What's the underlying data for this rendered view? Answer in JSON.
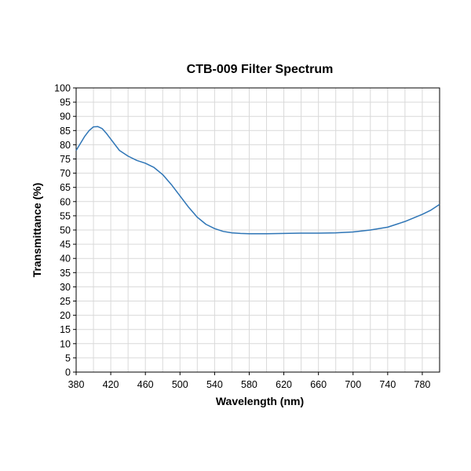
{
  "chart_data": {
    "type": "line",
    "title": "CTB-009 Filter Spectrum",
    "xlabel": "Wavelength (nm)",
    "ylabel": "Transmittance (%)",
    "xlim": [
      380,
      800
    ],
    "ylim": [
      0,
      100
    ],
    "x_ticks": [
      380,
      420,
      460,
      500,
      540,
      580,
      620,
      660,
      700,
      740,
      780
    ],
    "y_ticks": [
      0,
      5,
      10,
      15,
      20,
      25,
      30,
      35,
      40,
      45,
      50,
      55,
      60,
      65,
      70,
      75,
      80,
      85,
      90,
      95,
      100
    ],
    "grid": true,
    "legend": "none",
    "line_color": "#2e75b6",
    "series": [
      {
        "x": [
          380,
          385,
          390,
          395,
          400,
          405,
          410,
          415,
          420,
          430,
          440,
          450,
          460,
          470,
          480,
          490,
          500,
          510,
          520,
          530,
          540,
          550,
          560,
          570,
          580,
          590,
          600,
          620,
          640,
          660,
          680,
          700,
          720,
          740,
          760,
          780,
          790,
          800
        ],
        "y": [
          78,
          80.5,
          83,
          85,
          86.3,
          86.4,
          85.7,
          84,
          82,
          78,
          76,
          74.5,
          73.5,
          72,
          69.5,
          66,
          62,
          58,
          54.5,
          52,
          50.5,
          49.5,
          49,
          48.8,
          48.7,
          48.7,
          48.7,
          48.8,
          48.9,
          48.9,
          49,
          49.3,
          50,
          51,
          53,
          55.5,
          57,
          59
        ]
      }
    ]
  }
}
